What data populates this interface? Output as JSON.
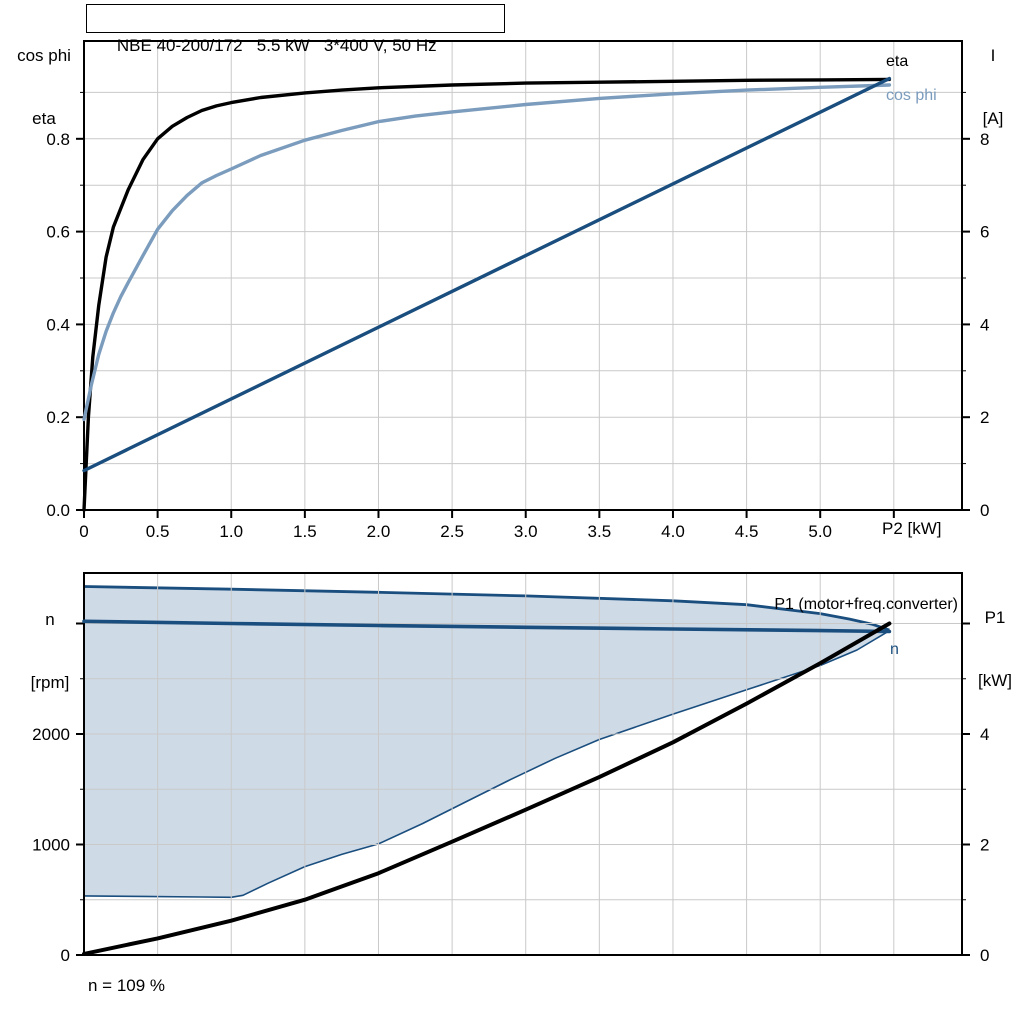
{
  "labels": {
    "title": "NBE 40-200/172   5.5 kW   3*400 V, 50 Hz",
    "top_left_axis_1": "cos phi",
    "top_left_axis_2": "eta",
    "top_right_axis_1": "I",
    "top_right_axis_2": "[A]",
    "x_axis": "P2 [kW]",
    "eta_curve": "eta",
    "cos_phi_curve": "cos phi",
    "bottom_left_axis_1": "n",
    "bottom_left_axis_2": "[rpm]",
    "bottom_right_axis_1": "P1",
    "bottom_right_axis_2": "[kW]",
    "p1_curve": "P1 (motor+freq.converter)",
    "n_curve": "n",
    "note": "n = 109 %"
  },
  "colors": {
    "black": "#000000",
    "dark_blue": "#1a4e7e",
    "light_blue": "#7b9cbd",
    "band_fill": "#cfdae7",
    "grid": "#c9c9c9",
    "background": "#ffffff"
  },
  "chart_data": [
    {
      "name": "motor-efficiency-chart",
      "type": "line",
      "title": "NBE 40-200/172   5.5 kW   3*400 V, 50 Hz",
      "xlabel": "P2 [kW]",
      "left_axis_title": [
        "cos phi",
        "eta"
      ],
      "right_axis_title": [
        "I",
        "[A]"
      ],
      "xlim": [
        0,
        5.963
      ],
      "x_major_ticks": [
        0,
        0.5,
        1,
        1.5,
        2,
        2.5,
        3,
        3.5,
        4,
        4.5,
        5,
        5.5
      ],
      "x_tick_labels": [
        "0",
        "0.5",
        "1.0",
        "1.5",
        "2.0",
        "2.5",
        "3.0",
        "3.5",
        "4.0",
        "4.5",
        "5.0",
        ""
      ],
      "show_x_ticks": true,
      "left_ylim": [
        0,
        1.0108
      ],
      "left_major_ticks": [
        0,
        0.2,
        0.4,
        0.6,
        0.8
      ],
      "left_tick_labels": [
        "0.0",
        "0.2",
        "0.4",
        "0.6",
        "0.8"
      ],
      "left_minor_ticks": [
        0.1,
        0.3,
        0.5,
        0.7,
        0.9
      ],
      "right_ylim": [
        0,
        10.108
      ],
      "right_major_ticks": [
        0,
        2,
        4,
        6,
        8
      ],
      "right_tick_labels": [
        "0",
        "2",
        "4",
        "6",
        "8"
      ],
      "right_minor_ticks": [
        1,
        3,
        5,
        7,
        9
      ],
      "grid_x": [
        0.5,
        1,
        1.5,
        2,
        2.5,
        3,
        3.5,
        4,
        4.5,
        5,
        5.5
      ],
      "grid_y_left": [
        0.1,
        0.2,
        0.3,
        0.4,
        0.5,
        0.6,
        0.7,
        0.8,
        0.9
      ],
      "legend_position": "end-of-curve",
      "series": [
        {
          "name": "eta",
          "axis": "left",
          "color": "#000000",
          "width": 3.4,
          "points": [
            [
              0,
              0
            ],
            [
              0.03,
              0.2
            ],
            [
              0.06,
              0.33
            ],
            [
              0.1,
              0.44
            ],
            [
              0.15,
              0.545
            ],
            [
              0.2,
              0.61
            ],
            [
              0.25,
              0.65
            ],
            [
              0.3,
              0.69
            ],
            [
              0.4,
              0.755
            ],
            [
              0.5,
              0.8
            ],
            [
              0.6,
              0.827
            ],
            [
              0.7,
              0.846
            ],
            [
              0.8,
              0.861
            ],
            [
              0.9,
              0.871
            ],
            [
              1,
              0.878
            ],
            [
              1.2,
              0.889
            ],
            [
              1.5,
              0.899
            ],
            [
              1.75,
              0.905
            ],
            [
              2,
              0.91
            ],
            [
              2.5,
              0.916
            ],
            [
              3,
              0.92
            ],
            [
              3.5,
              0.922
            ],
            [
              4,
              0.924
            ],
            [
              4.5,
              0.926
            ],
            [
              5,
              0.927
            ],
            [
              5.47,
              0.928
            ]
          ]
        },
        {
          "name": "cos phi",
          "axis": "left",
          "color": "#7b9cbd",
          "width": 3.4,
          "points": [
            [
              0,
              0.195
            ],
            [
              0.05,
              0.27
            ],
            [
              0.1,
              0.335
            ],
            [
              0.15,
              0.385
            ],
            [
              0.2,
              0.425
            ],
            [
              0.25,
              0.46
            ],
            [
              0.3,
              0.49
            ],
            [
              0.4,
              0.548
            ],
            [
              0.5,
              0.605
            ],
            [
              0.6,
              0.645
            ],
            [
              0.7,
              0.678
            ],
            [
              0.8,
              0.705
            ],
            [
              0.9,
              0.721
            ],
            [
              1,
              0.735
            ],
            [
              1.2,
              0.764
            ],
            [
              1.5,
              0.797
            ],
            [
              1.75,
              0.818
            ],
            [
              2,
              0.837
            ],
            [
              2.25,
              0.849
            ],
            [
              2.5,
              0.858
            ],
            [
              3,
              0.874
            ],
            [
              3.5,
              0.887
            ],
            [
              4,
              0.897
            ],
            [
              4.5,
              0.905
            ],
            [
              5,
              0.911
            ],
            [
              5.47,
              0.916
            ]
          ]
        },
        {
          "name": "I",
          "axis": "right",
          "color": "#1a4e7e",
          "width": 3.4,
          "points": [
            [
              0,
              0.85
            ],
            [
              5.47,
              9.3
            ]
          ]
        }
      ]
    },
    {
      "name": "speed-power-chart",
      "type": "line-area",
      "xlabel": "",
      "left_axis_title": [
        "n",
        "[rpm]"
      ],
      "right_axis_title": [
        "P1",
        "[kW]"
      ],
      "xlim": [
        0,
        5.963
      ],
      "x_major_ticks": [],
      "x_tick_labels": [],
      "show_x_ticks": false,
      "left_ylim": [
        0,
        3457
      ],
      "left_major_ticks": [
        0,
        1000,
        2000,
        3000
      ],
      "left_tick_labels": [
        "0",
        "1000",
        "2000",
        ""
      ],
      "left_minor_ticks": [
        500,
        1500,
        2500
      ],
      "right_ylim": [
        0,
        6.914
      ],
      "right_major_ticks": [
        0,
        2,
        4,
        6
      ],
      "right_tick_labels": [
        "0",
        "2",
        "4",
        ""
      ],
      "right_minor_ticks": [
        1,
        3,
        5
      ],
      "grid_x": [
        0.5,
        1,
        1.5,
        2,
        2.5,
        3,
        3.5,
        4,
        4.5,
        5,
        5.5
      ],
      "grid_y_left": [
        500,
        1000,
        1500,
        2000,
        2500,
        3000
      ],
      "annotation": "n = 109 %",
      "band": {
        "name": "speed-operating-envelope",
        "fill": "#cfdae7",
        "stroke": "#1a4e7e",
        "upper_width": 2.8,
        "lower_width": 1.6,
        "upper": [
          [
            0,
            3335
          ],
          [
            1,
            3310
          ],
          [
            2,
            3282
          ],
          [
            3,
            3250
          ],
          [
            4,
            3205
          ],
          [
            4.5,
            3170
          ],
          [
            5,
            3090
          ],
          [
            5.2,
            3040
          ],
          [
            5.35,
            2995
          ],
          [
            5.47,
            2940
          ]
        ],
        "lower": [
          [
            0,
            535
          ],
          [
            0.4,
            530
          ],
          [
            0.8,
            525
          ],
          [
            1,
            522
          ],
          [
            1.08,
            540
          ],
          [
            1.25,
            650
          ],
          [
            1.5,
            800
          ],
          [
            1.75,
            910
          ],
          [
            2,
            1005
          ],
          [
            2.3,
            1190
          ],
          [
            2.6,
            1390
          ],
          [
            2.9,
            1590
          ],
          [
            3.2,
            1780
          ],
          [
            3.5,
            1950
          ],
          [
            4,
            2180
          ],
          [
            4.5,
            2400
          ],
          [
            5,
            2620
          ],
          [
            5.25,
            2760
          ],
          [
            5.47,
            2935
          ]
        ]
      },
      "series": [
        {
          "name": "n",
          "axis": "left",
          "color": "#1a4e7e",
          "width": 3.6,
          "points": [
            [
              0,
              3020
            ],
            [
              1,
              3000
            ],
            [
              2,
              2982
            ],
            [
              3,
              2966
            ],
            [
              4,
              2950
            ],
            [
              5,
              2936
            ],
            [
              5.47,
              2928
            ]
          ]
        },
        {
          "name": "P1",
          "axis": "right",
          "color": "#000000",
          "width": 4,
          "points": [
            [
              0,
              0.02
            ],
            [
              0.5,
              0.3
            ],
            [
              1,
              0.62
            ],
            [
              1.5,
              1
            ],
            [
              2,
              1.48
            ],
            [
              2.5,
              2.05
            ],
            [
              3,
              2.63
            ],
            [
              3.5,
              3.22
            ],
            [
              4,
              3.85
            ],
            [
              4.5,
              4.55
            ],
            [
              5,
              5.28
            ],
            [
              5.47,
              6
            ]
          ]
        }
      ]
    }
  ]
}
